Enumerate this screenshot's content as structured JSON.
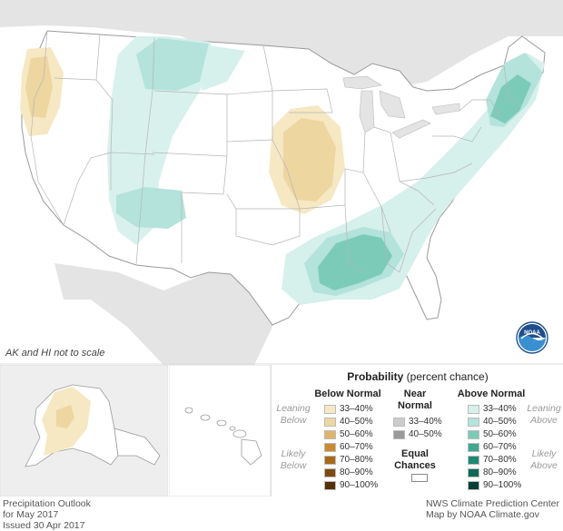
{
  "notes": {
    "scale": "AK and HI not to scale"
  },
  "legend": {
    "title_bold": "Probability",
    "title_rest": " (percent chance)",
    "below": {
      "heading": "Below Normal",
      "leaning": [
        "Leaning",
        "Below"
      ],
      "likely": [
        "Likely",
        "Below"
      ],
      "items": [
        {
          "label": "33–40%",
          "color": "#f6e8c3"
        },
        {
          "label": "40–50%",
          "color": "#edd6a0"
        },
        {
          "label": "50–60%",
          "color": "#dfb56a"
        },
        {
          "label": "60–70%",
          "color": "#c98b2e"
        },
        {
          "label": "70–80%",
          "color": "#a8691b"
        },
        {
          "label": "80–90%",
          "color": "#7d4a10"
        },
        {
          "label": "90–100%",
          "color": "#55300a"
        }
      ]
    },
    "near": {
      "heading": [
        "Near",
        "Normal"
      ],
      "items": [
        {
          "label": "33–40%",
          "color": "#cccccc"
        },
        {
          "label": "40–50%",
          "color": "#9a9a9a"
        }
      ],
      "equal": [
        "Equal",
        "Chances"
      ]
    },
    "above": {
      "heading": "Above Normal",
      "leaning": [
        "Leaning",
        "Above"
      ],
      "likely": [
        "Likely",
        "Above"
      ],
      "items": [
        {
          "label": "33–40%",
          "color": "#d6f0eb"
        },
        {
          "label": "40–50%",
          "color": "#b3e3da"
        },
        {
          "label": "50–60%",
          "color": "#7ccbb9"
        },
        {
          "label": "60–70%",
          "color": "#3fa88f"
        },
        {
          "label": "70–80%",
          "color": "#1f8a73"
        },
        {
          "label": "80–90%",
          "color": "#0e6a57"
        },
        {
          "label": "90–100%",
          "color": "#054034"
        }
      ]
    }
  },
  "footer": {
    "left": [
      "Precipitation Outlook",
      "for May 2017",
      "Issued 30 Apr 2017"
    ],
    "right": [
      "NWS Climate Prediction Center",
      "Map by NOAA Climate.gov"
    ]
  },
  "logo": {
    "label": "NOAA"
  }
}
